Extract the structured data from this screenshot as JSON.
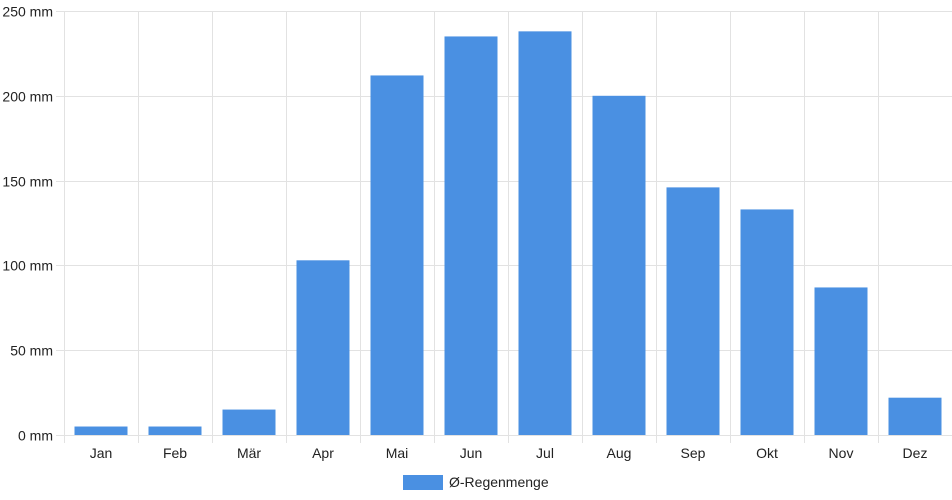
{
  "chart_data": {
    "type": "bar",
    "categories": [
      "Jan",
      "Feb",
      "Mär",
      "Apr",
      "Mai",
      "Jun",
      "Jul",
      "Aug",
      "Sep",
      "Okt",
      "Nov",
      "Dez"
    ],
    "series": [
      {
        "name": "Ø-Regenmenge",
        "values": [
          5,
          5,
          15,
          103,
          212,
          235,
          238,
          200,
          146,
          133,
          87,
          22
        ],
        "color": "#4a90e2"
      }
    ],
    "ylim": [
      0,
      250
    ],
    "yticks": [
      0,
      50,
      100,
      150,
      200,
      250
    ],
    "ytick_labels": [
      "0 mm",
      "50 mm",
      "100 mm",
      "150 mm",
      "200 mm",
      "250 mm"
    ],
    "grid": true,
    "legend_position": "bottom-center",
    "title": "",
    "xlabel": "",
    "ylabel": ""
  }
}
